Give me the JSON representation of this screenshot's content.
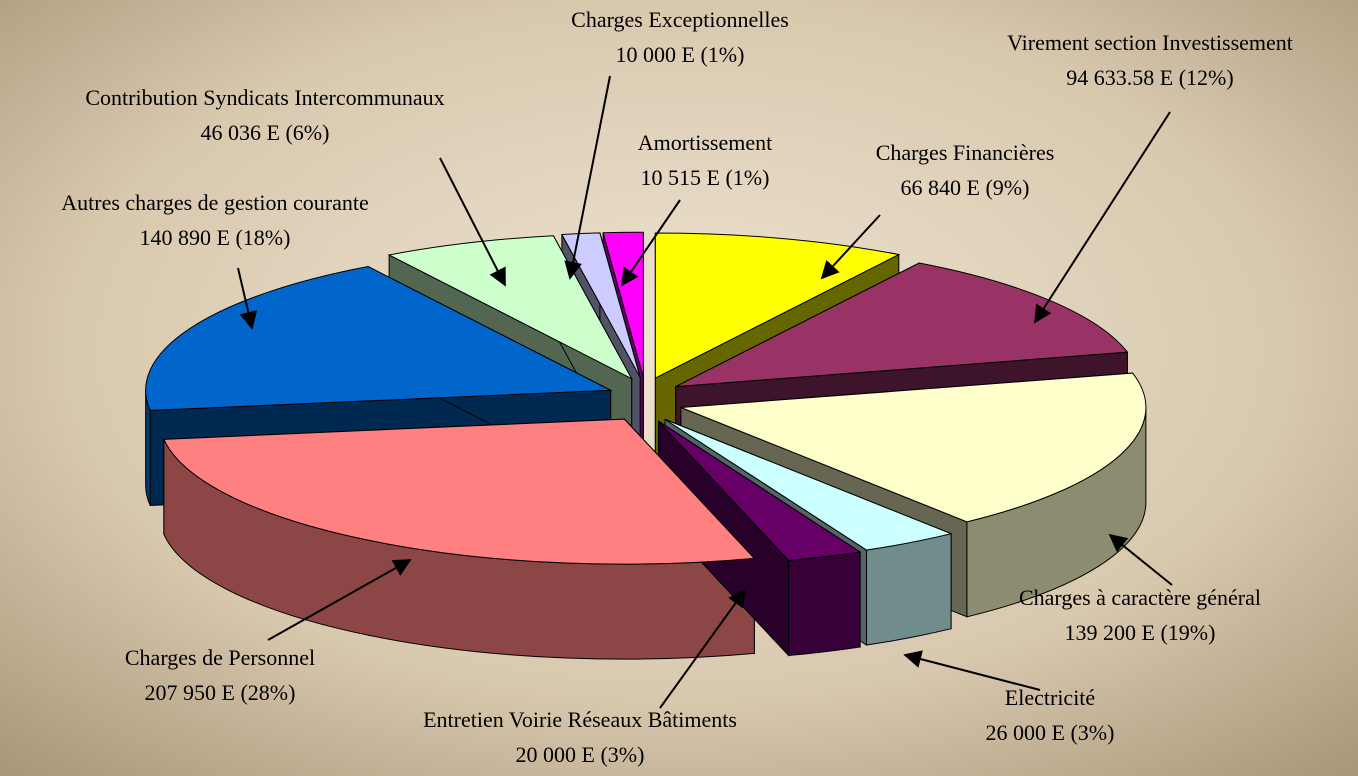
{
  "chart_data": {
    "type": "pie",
    "categories": [
      "Charges Financières",
      "Virement section Investissement",
      "Charges à caractère général",
      "Electricité",
      "Entretien Voirie Réseaux Bâtiments",
      "Charges de Personnel",
      "Autres charges de gestion courante",
      "Contribution Syndicats Intercommunaux",
      "Charges Exceptionnelles",
      "Amortissement"
    ],
    "values": [
      66840,
      94633.58,
      139200,
      26000,
      20000,
      207950,
      140890,
      46036,
      10000,
      10515
    ],
    "value_labels": [
      "66 840 E (9%)",
      "94 633.58 E (12%)",
      "139 200 E (19%)",
      "26 000 E (3%)",
      "20 000 E (3%)",
      "207 950 E (28%)",
      "140 890 E (18%)",
      "46 036 E (6%)",
      "10 000 E (1%)",
      "10 515 E (1%)"
    ],
    "colors": [
      "#ffff00",
      "#993366",
      "#ffffcc",
      "#ccffff",
      "#660066",
      "#ff8080",
      "#0066cc",
      "#ccffcc",
      "#ccccff",
      "#ff00ff"
    ]
  }
}
